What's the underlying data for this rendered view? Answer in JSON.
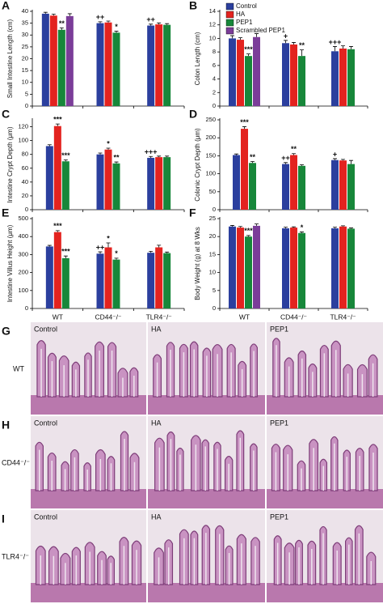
{
  "chart_data": [
    {
      "type": "bar",
      "panel": "A",
      "ylabel": "Small Intestine Length (cm)",
      "categories": [
        null,
        null,
        null
      ],
      "ylim": [
        0,
        40
      ],
      "yticks": [
        0,
        5,
        10,
        15,
        20,
        25,
        30,
        35,
        40
      ],
      "series": [
        {
          "name": "Control",
          "color": "#2b3f9e",
          "values": [
            39,
            35,
            34
          ],
          "errors": [
            0.6,
            0.6,
            0.6
          ],
          "significance": [
            null,
            "++",
            "++"
          ]
        },
        {
          "name": "HA",
          "color": "#e3231f",
          "values": [
            38.2,
            35.3,
            34.5
          ],
          "errors": [
            0.6,
            0.6,
            0.6
          ]
        },
        {
          "name": "PEP1",
          "color": "#17873a",
          "values": [
            32.2,
            31,
            34.3
          ],
          "errors": [
            0.8,
            0.6,
            0.5
          ],
          "significance": [
            "**",
            "*",
            null
          ]
        },
        {
          "name": "Scrambled PEP1",
          "color": "#7b3d99",
          "values": [
            38,
            null,
            null
          ],
          "errors": [
            1.0,
            null,
            null
          ]
        }
      ]
    },
    {
      "type": "bar",
      "panel": "B",
      "ylabel": "Colon Length (cm)",
      "legend": "upper-left",
      "categories": [
        null,
        null,
        null
      ],
      "ylim": [
        0,
        14
      ],
      "yticks": [
        0,
        2,
        4,
        6,
        8,
        10,
        12,
        14
      ],
      "series": [
        {
          "name": "Control",
          "color": "#2b3f9e",
          "values": [
            10,
            9.3,
            8.1
          ],
          "errors": [
            0.4,
            0.4,
            0.7
          ],
          "significance": [
            null,
            "+",
            "+++"
          ]
        },
        {
          "name": "HA",
          "color": "#e3231f",
          "values": [
            9.8,
            9.1,
            8.5
          ],
          "errors": [
            0.3,
            0.3,
            0.4
          ]
        },
        {
          "name": "PEP1",
          "color": "#17873a",
          "values": [
            7.4,
            7.4,
            8.4
          ],
          "errors": [
            0.3,
            0.9,
            0.4
          ],
          "significance": [
            "***",
            "**",
            null
          ]
        },
        {
          "name": "Scrambled PEP1",
          "color": "#7b3d99",
          "values": [
            10.2,
            null,
            null
          ],
          "errors": [
            0.5,
            null,
            null
          ]
        }
      ]
    },
    {
      "type": "bar",
      "panel": "C",
      "ylabel": "Intestine Crypt Depth (μm)",
      "categories": [
        null,
        null,
        null
      ],
      "ylim": [
        0,
        130
      ],
      "yticks": [
        0,
        20,
        40,
        60,
        80,
        100,
        120
      ],
      "series": [
        {
          "name": "Control",
          "color": "#2b3f9e",
          "values": [
            92,
            80,
            75
          ],
          "errors": [
            2,
            2,
            2
          ],
          "significance": [
            null,
            null,
            "+++"
          ]
        },
        {
          "name": "HA",
          "color": "#e3231f",
          "values": [
            121,
            87,
            76
          ],
          "errors": [
            3,
            2,
            1.5
          ],
          "significance": [
            "***",
            "*",
            null
          ]
        },
        {
          "name": "PEP1",
          "color": "#17873a",
          "values": [
            70,
            67,
            76
          ],
          "errors": [
            2,
            2,
            1.5
          ],
          "significance": [
            "***",
            "**",
            null
          ]
        }
      ]
    },
    {
      "type": "bar",
      "panel": "D",
      "ylabel": "Colonic Crypt Depth (μm)",
      "categories": [
        null,
        null,
        null
      ],
      "ylim": [
        0,
        250
      ],
      "yticks": [
        0,
        50,
        100,
        150,
        200,
        250
      ],
      "series": [
        {
          "name": "Control",
          "color": "#2b3f9e",
          "values": [
            152,
            127,
            138
          ],
          "errors": [
            3,
            4,
            4
          ],
          "significance": [
            null,
            "++",
            "+"
          ]
        },
        {
          "name": "HA",
          "color": "#e3231f",
          "values": [
            225,
            152,
            137
          ],
          "errors": [
            6,
            4,
            3
          ],
          "significance": [
            "***",
            "**",
            null
          ]
        },
        {
          "name": "PEP1",
          "color": "#17873a",
          "values": [
            130,
            122,
            127
          ],
          "errors": [
            4,
            3,
            10
          ],
          "significance": [
            "**",
            null,
            null
          ]
        }
      ]
    },
    {
      "type": "bar",
      "panel": "E",
      "ylabel": "Intestine Villus Height (μm)",
      "categories": [
        "WT",
        "CD44⁻/⁻",
        "TLR4⁻/⁻"
      ],
      "ylim": [
        0,
        500
      ],
      "yticks": [
        0,
        100,
        200,
        300,
        400,
        500
      ],
      "series": [
        {
          "name": "Control",
          "color": "#2b3f9e",
          "values": [
            345,
            305,
            310
          ],
          "errors": [
            6,
            10,
            8
          ],
          "significance": [
            null,
            "++",
            null
          ]
        },
        {
          "name": "HA",
          "color": "#e3231f",
          "values": [
            425,
            340,
            340
          ],
          "errors": [
            8,
            25,
            12
          ],
          "significance": [
            "***",
            "*",
            null
          ]
        },
        {
          "name": "PEP1",
          "color": "#17873a",
          "values": [
            280,
            272,
            308
          ],
          "errors": [
            12,
            8,
            6
          ],
          "significance": [
            "***",
            "*",
            null
          ]
        }
      ]
    },
    {
      "type": "bar",
      "panel": "F",
      "ylabel": "Body Weight (g) at 8 Wks",
      "categories": [
        "WT",
        "CD44⁻/⁻",
        "TLR4⁻/⁻"
      ],
      "ylim": [
        0,
        25
      ],
      "yticks": [
        0,
        5,
        10,
        15,
        20,
        25
      ],
      "series": [
        {
          "name": "Control",
          "color": "#2b3f9e",
          "values": [
            22.8,
            22.3,
            22.3
          ],
          "errors": [
            0.3,
            0.3,
            0.3
          ]
        },
        {
          "name": "HA",
          "color": "#e3231f",
          "values": [
            22.5,
            22.5,
            22.8
          ],
          "errors": [
            0.3,
            0.2,
            0.2
          ]
        },
        {
          "name": "PEP1",
          "color": "#17873a",
          "values": [
            20,
            21,
            22.2
          ],
          "errors": [
            0.3,
            0.3,
            0.2
          ],
          "significance": [
            "***",
            "*",
            null
          ]
        },
        {
          "name": "Scrambled PEP1",
          "color": "#7b3d99",
          "values": [
            23,
            null,
            null
          ],
          "errors": [
            0.5,
            null,
            null
          ]
        }
      ]
    }
  ],
  "histology": {
    "panels": [
      {
        "letter": "G",
        "row_label": "WT",
        "images": [
          "Control",
          "HA",
          "PEP1"
        ]
      },
      {
        "letter": "H",
        "row_label": "CD44⁻/⁻",
        "images": [
          "Control",
          "HA",
          "PEP1"
        ]
      },
      {
        "letter": "I",
        "row_label": "TLR4⁻/⁻",
        "images": [
          "Control",
          "HA",
          "PEP1"
        ]
      }
    ]
  }
}
